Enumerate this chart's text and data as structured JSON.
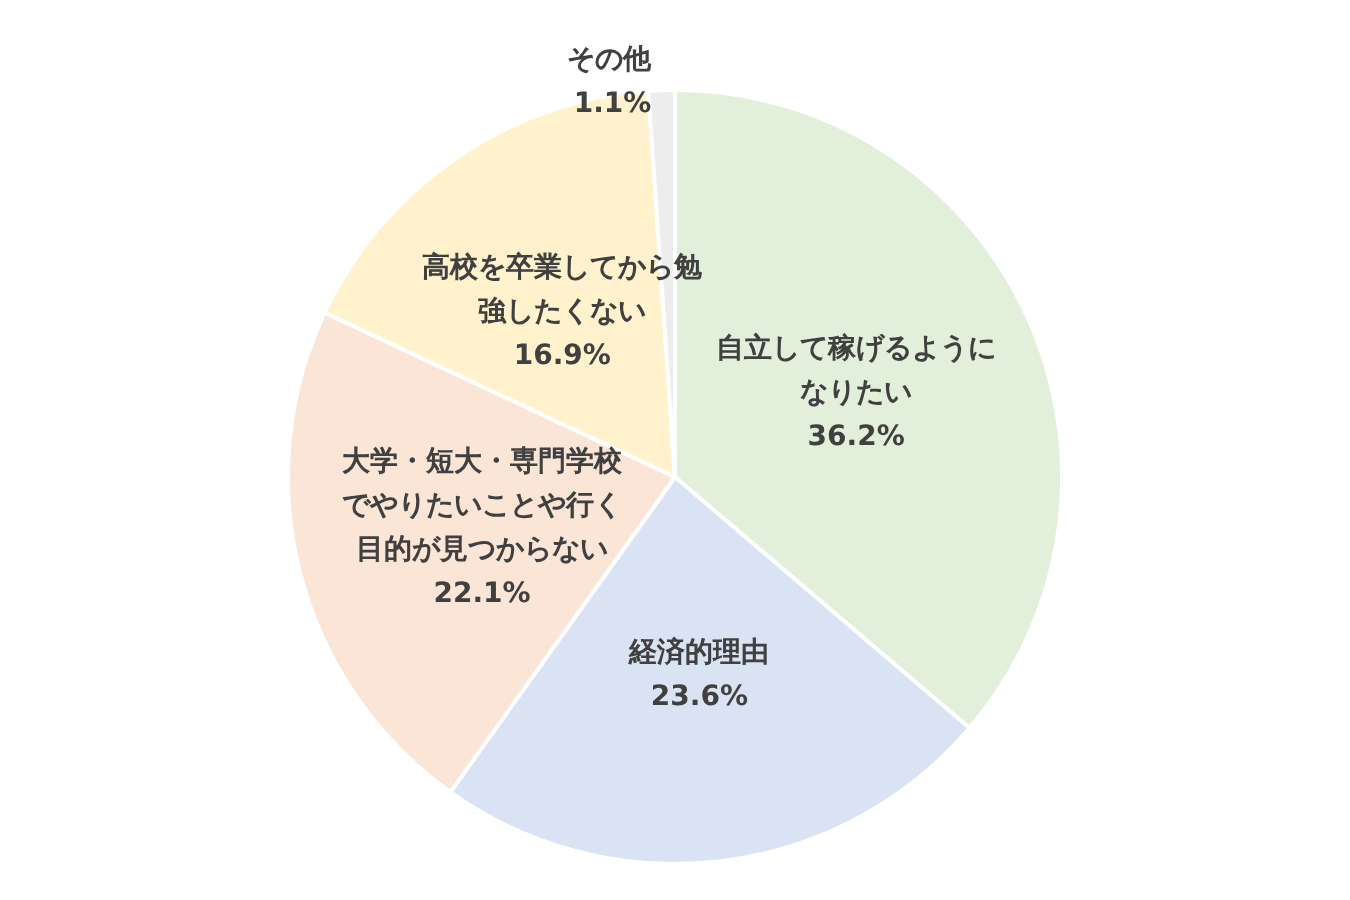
{
  "chart_data": {
    "type": "pie",
    "categories": [
      "自立して稼げるようになりたい",
      "経済的理由",
      "大学・短大・専門学校でやりたいことや行く目的が見つからない",
      "高校を卒業してから勉強したくない",
      "その他"
    ],
    "values": [
      36.2,
      23.6,
      22.1,
      16.9,
      1.1
    ],
    "value_labels": [
      "36.2%",
      "23.6%",
      "22.1%",
      "16.9%",
      "1.1%"
    ],
    "colors": [
      "#e2efda",
      "#dae3f3",
      "#fbe5d6",
      "#fff2cc",
      "#ededed"
    ],
    "legend": false
  }
}
